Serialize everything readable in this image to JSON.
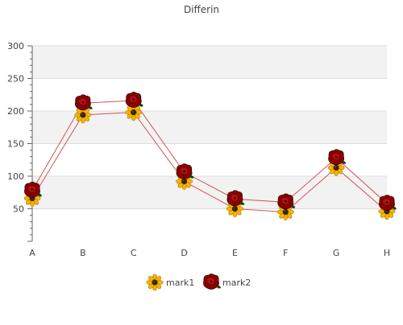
{
  "chart_data": {
    "type": "line",
    "title": "Differin",
    "xlabel": "",
    "ylabel": "",
    "categories": [
      "A",
      "B",
      "C",
      "D",
      "E",
      "F",
      "G",
      "H"
    ],
    "ylim": [
      0,
      300
    ],
    "yticks": [
      50,
      100,
      150,
      200,
      250,
      300
    ],
    "grid": "horizontal bands",
    "legend": "bottom-center",
    "colors": {
      "line": "#cc5555",
      "band": "#f2f2f2",
      "gridline": "#dddddd",
      "axis": "#666666",
      "text": "#444444"
    },
    "series": [
      {
        "name": "mark1",
        "marker": "sunflower-icon",
        "values": [
          66,
          194,
          198,
          92,
          50,
          45,
          113,
          46
        ]
      },
      {
        "name": "mark2",
        "marker": "rose-icon",
        "values": [
          78,
          212,
          216,
          106,
          65,
          60,
          128,
          58
        ]
      }
    ]
  }
}
